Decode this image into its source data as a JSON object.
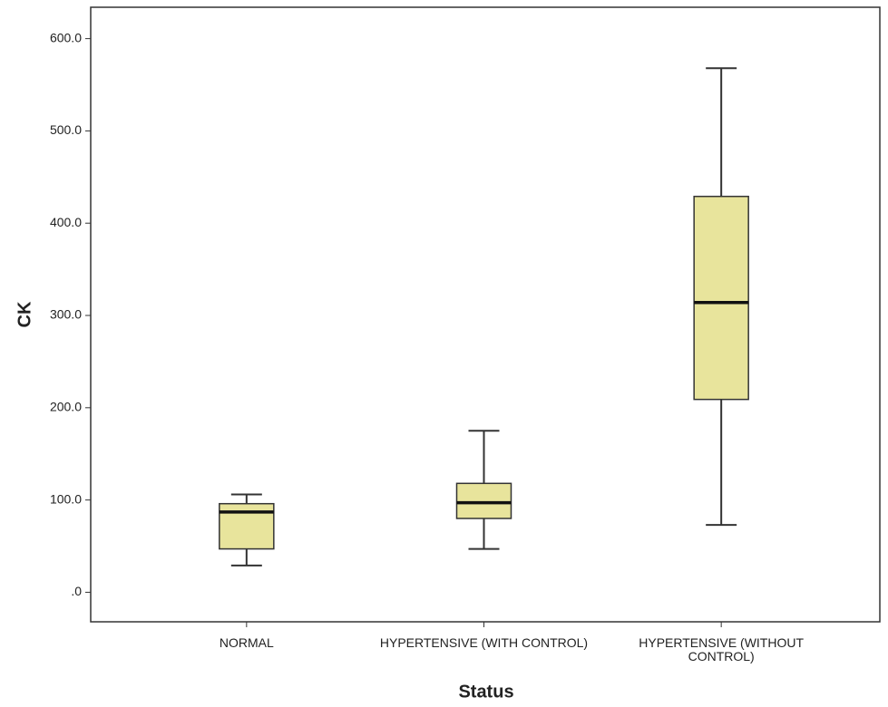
{
  "chart_data": {
    "type": "box",
    "x_label": "Status",
    "y_label": "CK",
    "categories": [
      "NORMAL",
      "HYPERTENSIVE (WITH CONTROL)",
      "HYPERTENSIVE (WITHOUT CONTROL)"
    ],
    "boxes": [
      {
        "whislo": 29,
        "q1": 47,
        "med": 87,
        "q3": 96,
        "whishi": 106
      },
      {
        "whislo": 47,
        "q1": 80,
        "med": 97,
        "q3": 118,
        "whishi": 175
      },
      {
        "whislo": 73,
        "q1": 209,
        "med": 314,
        "q3": 429,
        "whishi": 568
      }
    ],
    "color": "#e8e49c",
    "ylim": [
      -32,
      634
    ],
    "yticks": [
      {
        "value": 0,
        "label": ".0"
      },
      {
        "value": 100,
        "label": "100.0"
      },
      {
        "value": 200,
        "label": "200.0"
      },
      {
        "value": 300,
        "label": "300.0"
      },
      {
        "value": 400,
        "label": "400.0"
      },
      {
        "value": 500,
        "label": "500.0"
      },
      {
        "value": 600,
        "label": "600.0"
      }
    ],
    "grid": false
  }
}
